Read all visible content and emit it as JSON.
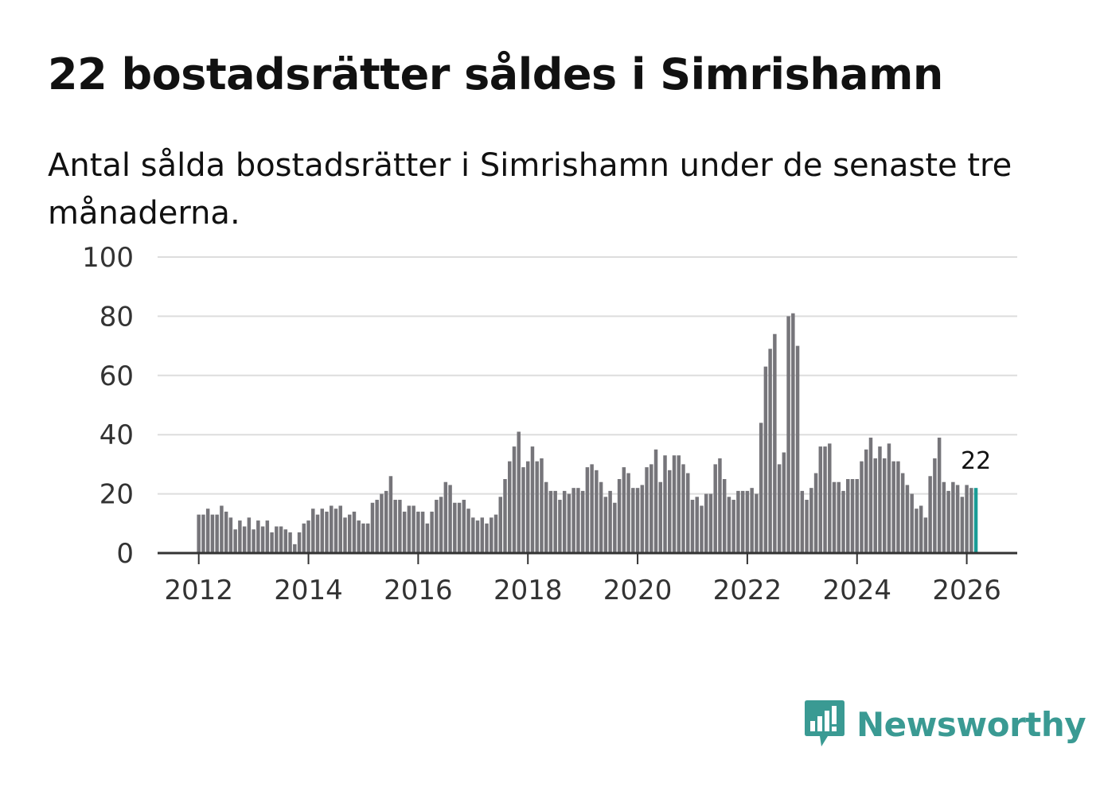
{
  "header": {
    "title": "22 bostadsrätter såldes i Simrishamn",
    "subtitle": "Antal sålda bostadsrätter i Simrishamn under de senaste tre månaderna."
  },
  "brand": {
    "name": "Newsworthy",
    "icon": "newsworthy-logo-icon",
    "color": "#3a9a93"
  },
  "colors": {
    "bar": "#76757a",
    "highlight": "#1a9c96",
    "grid": "#dddddd",
    "axis": "#333333"
  },
  "chart_data": {
    "type": "bar",
    "title": "22 bostadsrätter såldes i Simrishamn",
    "subtitle": "Antal sålda bostadsrätter i Simrishamn under de senaste tre månaderna.",
    "xlabel": "",
    "ylabel": "",
    "ylim": [
      0,
      100
    ],
    "yticks": [
      0,
      20,
      40,
      60,
      80,
      100
    ],
    "xticks": [
      "2012",
      "2014",
      "2016",
      "2018",
      "2020",
      "2022",
      "2024",
      "2026"
    ],
    "xrange": [
      2011.25,
      2026.92
    ],
    "start": {
      "year": 2012,
      "month": 1
    },
    "grid": true,
    "highlight_last": true,
    "last_label": "22",
    "values": [
      13,
      13,
      15,
      13,
      13,
      16,
      14,
      12,
      8,
      11,
      9,
      12,
      8,
      11,
      9,
      11,
      7,
      9,
      9,
      8,
      7,
      3,
      7,
      10,
      11,
      15,
      13,
      15,
      14,
      16,
      15,
      16,
      12,
      13,
      14,
      11,
      10,
      10,
      17,
      18,
      20,
      21,
      26,
      18,
      18,
      14,
      16,
      16,
      14,
      14,
      10,
      14,
      18,
      19,
      24,
      23,
      17,
      17,
      18,
      15,
      12,
      11,
      12,
      10,
      12,
      13,
      19,
      25,
      31,
      36,
      41,
      29,
      31,
      36,
      31,
      32,
      24,
      21,
      21,
      18,
      21,
      20,
      22,
      22,
      21,
      29,
      30,
      28,
      24,
      19,
      21,
      17,
      25,
      29,
      27,
      22,
      22,
      23,
      29,
      30,
      35,
      24,
      33,
      28,
      33,
      33,
      30,
      27,
      18,
      19,
      16,
      20,
      20,
      30,
      32,
      25,
      19,
      18,
      21,
      21,
      21,
      22,
      20,
      44,
      63,
      69,
      74,
      30,
      34,
      80,
      81,
      70,
      21,
      18,
      22,
      27,
      36,
      36,
      37,
      24,
      24,
      21,
      25,
      25,
      25,
      31,
      35,
      39,
      32,
      36,
      32,
      37,
      31,
      31,
      27,
      23,
      20,
      15,
      16,
      12,
      26,
      32,
      39,
      24,
      21,
      24,
      23,
      19,
      23,
      22,
      22
    ]
  }
}
